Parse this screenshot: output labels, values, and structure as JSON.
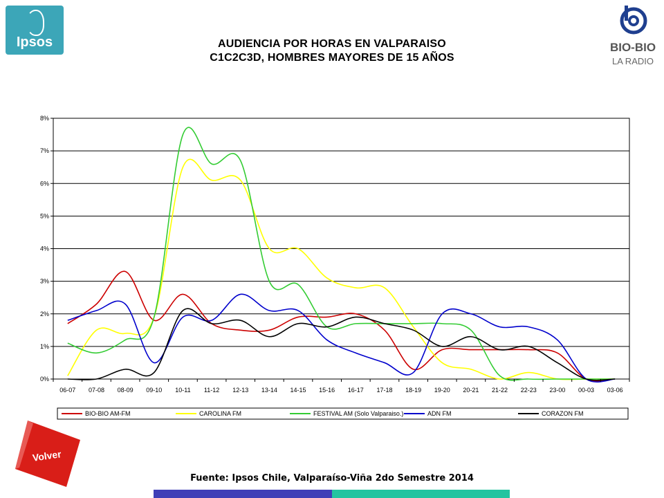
{
  "branding": {
    "ipsos_logo_text": "Ipsos",
    "biobio_logo_text": "BIO-BIO",
    "biobio_logo_subtext": "LA RADIO"
  },
  "header": {
    "title_line1": "AUDIENCIA POR HORAS EN VALPARAISO",
    "title_line2": "C1C2C3D, HOMBRES MAYORES DE 15 AÑOS"
  },
  "volver_button": {
    "label": "Volver"
  },
  "footer": {
    "source": "Fuente: Ipsos Chile, Valparaíso-Viña 2do Semestre 2014"
  },
  "chart_data": {
    "type": "line",
    "title": "",
    "xlabel": "",
    "ylabel": "",
    "categories": [
      "06-07",
      "07-08",
      "08-09",
      "09-10",
      "10-11",
      "11-12",
      "12-13",
      "13-14",
      "14-15",
      "15-16",
      "16-17",
      "17-18",
      "18-19",
      "19-20",
      "20-21",
      "21-22",
      "22-23",
      "23-00",
      "00-03",
      "03-06"
    ],
    "y_ticks": [
      "0%",
      "1%",
      "2%",
      "3%",
      "4%",
      "5%",
      "6%",
      "7%",
      "8%"
    ],
    "ylim": [
      0,
      8
    ],
    "grid": "horizontal",
    "legend_position": "bottom",
    "series": [
      {
        "name": "BIO-BIO AM-FM",
        "color": "#cc0000",
        "values": [
          1.7,
          2.3,
          3.3,
          1.8,
          2.6,
          1.7,
          1.5,
          1.5,
          1.9,
          1.9,
          2.0,
          1.5,
          0.3,
          0.9,
          0.9,
          0.9,
          0.9,
          0.8,
          0.0,
          0.0
        ]
      },
      {
        "name": "CAROLINA FM",
        "color": "#ffff00",
        "values": [
          0.1,
          1.5,
          1.4,
          1.9,
          6.5,
          6.1,
          6.1,
          4.0,
          4.0,
          3.1,
          2.8,
          2.8,
          1.6,
          0.5,
          0.3,
          0.0,
          0.2,
          0.0,
          0.0,
          0.0
        ]
      },
      {
        "name": "FESTIVAL AM (Solo Valparaiso.)",
        "color": "#33cc33",
        "values": [
          1.1,
          0.8,
          1.2,
          1.9,
          7.5,
          6.6,
          6.7,
          3.0,
          2.9,
          1.6,
          1.7,
          1.7,
          1.7,
          1.7,
          1.5,
          0.1,
          0.0,
          0.0,
          0.0,
          0.0
        ]
      },
      {
        "name": "ADN FM",
        "color": "#0000cc",
        "values": [
          1.8,
          2.1,
          2.3,
          0.5,
          1.9,
          1.8,
          2.6,
          2.1,
          2.1,
          1.2,
          0.8,
          0.5,
          0.2,
          2.0,
          2.0,
          1.6,
          1.6,
          1.2,
          0.0,
          0.0
        ]
      },
      {
        "name": "CORAZON FM",
        "color": "#000000",
        "values": [
          0.0,
          0.0,
          0.3,
          0.2,
          2.1,
          1.7,
          1.8,
          1.3,
          1.7,
          1.6,
          1.9,
          1.7,
          1.5,
          1.0,
          1.3,
          0.9,
          1.0,
          0.5,
          0.0,
          0.0
        ]
      }
    ]
  }
}
